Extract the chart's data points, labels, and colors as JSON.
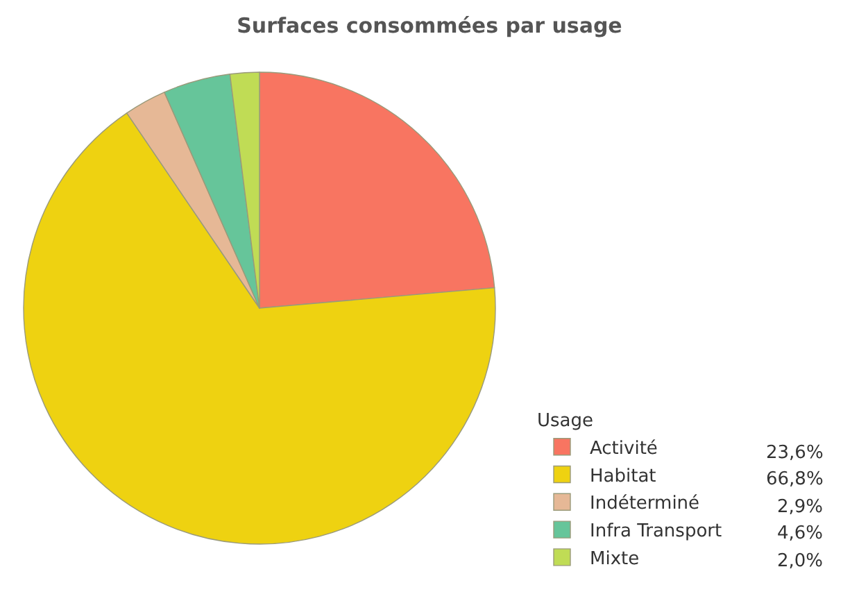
{
  "chart_data": {
    "type": "pie",
    "title": "Surfaces consommées par usage",
    "legend_title": "Usage",
    "legend": "bottom right",
    "categories": [
      "Activité",
      "Habitat",
      "Indéterminé",
      "Infra Transport",
      "Mixte"
    ],
    "values": [
      23.6,
      66.8,
      2.9,
      4.6,
      2.0
    ],
    "value_labels": [
      "23,6%",
      "66,8%",
      "2,9%",
      "4,6%",
      "2,0%"
    ],
    "colors": [
      "#f87561",
      "#eed211",
      "#e6b896",
      "#66c59a",
      "#c0dc55"
    ]
  }
}
